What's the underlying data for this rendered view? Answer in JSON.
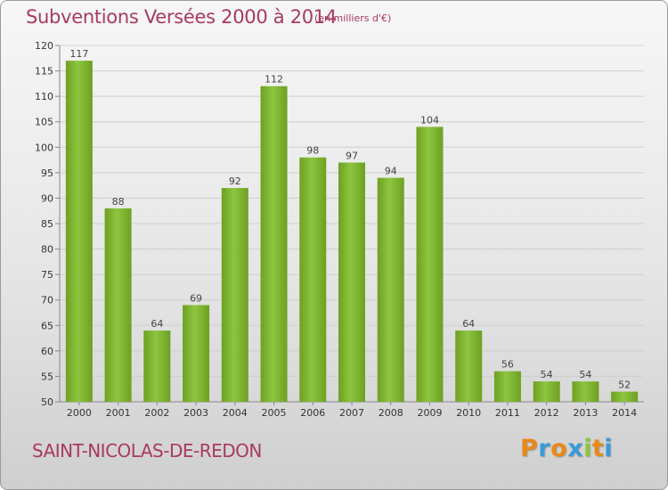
{
  "header": {
    "title": "Subventions Versées 2000 à 2014",
    "subtitle": "(en milliers d'€)"
  },
  "footer": {
    "commune": "SAINT-NICOLAS-DE-REDON",
    "logo_letters": [
      "P",
      "r",
      "o",
      "x",
      "i",
      "t",
      "i"
    ],
    "logo_colors": [
      "#e8891a",
      "#3a9ad9",
      "#e8891a",
      "#3a9ad9",
      "#8cc63f",
      "#e8891a",
      "#3a9ad9"
    ]
  },
  "chart_data": {
    "type": "bar",
    "categories": [
      "2000",
      "2001",
      "2002",
      "2003",
      "2004",
      "2005",
      "2006",
      "2007",
      "2008",
      "2009",
      "2010",
      "2011",
      "2012",
      "2013",
      "2014"
    ],
    "values": [
      117,
      88,
      64,
      69,
      92,
      112,
      98,
      97,
      94,
      104,
      64,
      56,
      54,
      54,
      52
    ],
    "data_labels": [
      "117",
      "88",
      "64",
      "69",
      "92",
      "112",
      "98",
      "97",
      "94",
      "104",
      "64",
      "56",
      "54",
      "54",
      "52"
    ],
    "title": "Subventions Versées 2000 à 2014",
    "ylim": [
      50,
      120
    ],
    "yticks": [
      50,
      55,
      60,
      65,
      70,
      75,
      80,
      85,
      90,
      95,
      100,
      105,
      110,
      115,
      120
    ],
    "grid": true,
    "bar_color": "#8cc63f",
    "bar_color_dark": "#6ea022"
  }
}
